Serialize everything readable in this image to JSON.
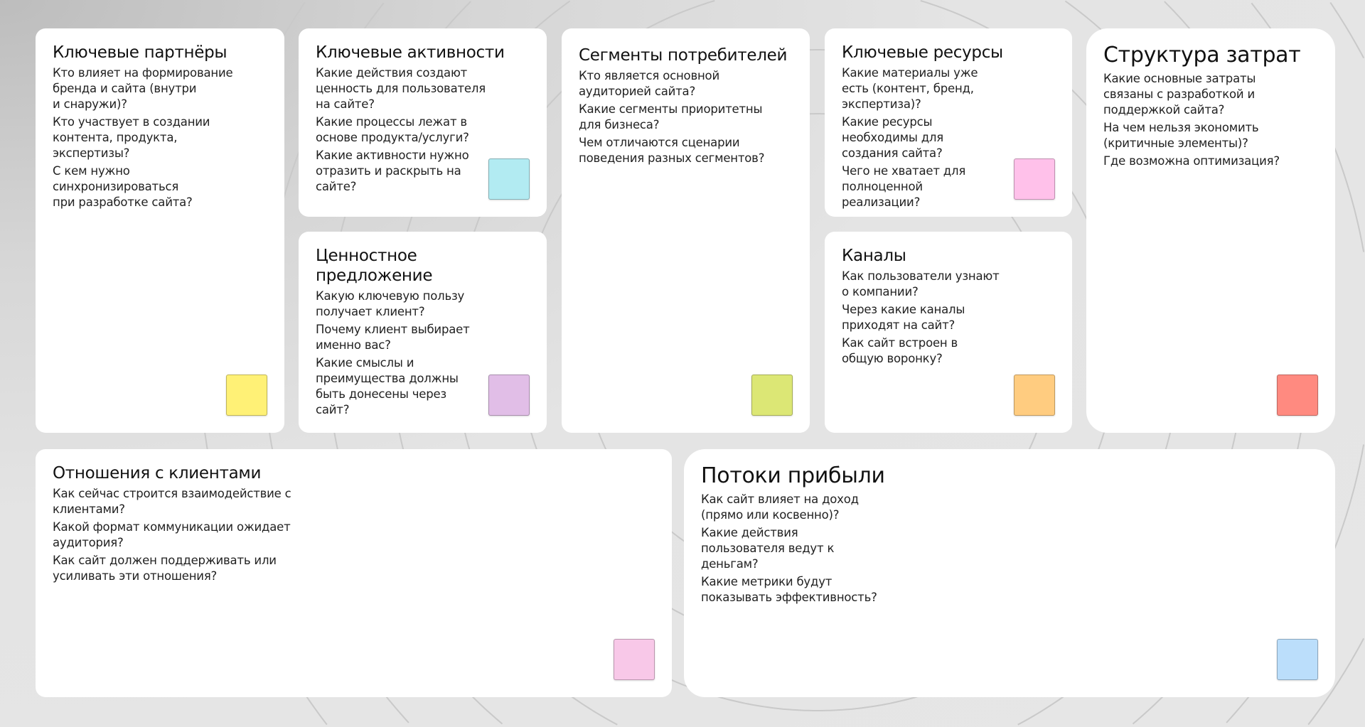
{
  "cards": [
    {
      "id": "key-partners",
      "title": "Ключевые партнёры",
      "color": "#fff176",
      "questions": [
        "Кто влияет на формирование\nбренда и сайта (внутри\nи снаружи)?",
        "Кто участвует в создании\nконтента, продукта,\nэкспертизы?",
        "С кем нужно\nсинхронизироваться\nпри разработке сайта?"
      ]
    },
    {
      "id": "key-activities",
      "title": "Ключевые активности",
      "color": "#b2ebf2",
      "questions": [
        "Какие действия создают\nценность для пользователя\nна сайте?",
        "Какие процессы лежат в\nоснове продукта/услуги?",
        "Какие активности нужно\nотразить и раскрыть на\nсайте?"
      ]
    },
    {
      "id": "value-proposition",
      "title": "Ценностное\nпредложение",
      "color": "#e1bee7",
      "questions": [
        "Какую ключевую пользу\nполучает клиент?",
        "Почему клиент выбирает\nименно вас?",
        "Какие смыслы и\nпреимущества должны\nбыть донесены через\nсайт?"
      ]
    },
    {
      "id": "customer-segments",
      "title": "Сегменты потребителей",
      "color": "#dce775",
      "questions": [
        "Кто является основной\nаудиторией сайта?",
        "Какие сегменты приоритетны\nдля бизнеса?",
        "Чем отличаются сценарии\nповедения разных сегментов?"
      ]
    },
    {
      "id": "key-resources",
      "title": "Ключевые ресурсы",
      "color": "#ffc1ea",
      "questions": [
        "Какие материалы уже\nесть (контент, бренд,\nэкспертиза)?",
        "Какие ресурсы\nнеобходимы для\nсоздания сайта?",
        "Чего не хватает для\nполноценной\nреализации?"
      ]
    },
    {
      "id": "channels",
      "title": "Каналы",
      "color": "#ffcc80",
      "questions": [
        "Как пользователи узнают\nо компании?",
        "Через какие каналы\nприходят на сайт?",
        "Как сайт встроен в\nобщую воронку?"
      ]
    },
    {
      "id": "cost-structure",
      "title": "Структура затрат",
      "color": "#ff8a80",
      "questions": [
        "Какие основные затраты\nсвязаны с разработкой и\nподдержкой сайта?",
        "На чем нельзя экономить\n(критичные элементы)?",
        "Где возможна оптимизация?"
      ]
    },
    {
      "id": "customer-relationships",
      "title": "Отношения с клиентами",
      "color": "#f8c8e8",
      "questions": [
        "Как сейчас строится взаимодействие с\nклиентами?",
        "Какой формат коммуникации ожидает\nаудитория?",
        "Как сайт должен поддерживать или\nусиливать эти отношения?"
      ]
    },
    {
      "id": "revenue-streams",
      "title": "Потоки прибыли",
      "color": "#bbdefb",
      "questions": [
        "Как сайт влияет на доход\n(прямо или косвенно)?",
        "Какие действия\nпользователя ведут к\nденьгам?",
        "Какие метрики будут\nпоказывать эффективность?"
      ]
    }
  ]
}
